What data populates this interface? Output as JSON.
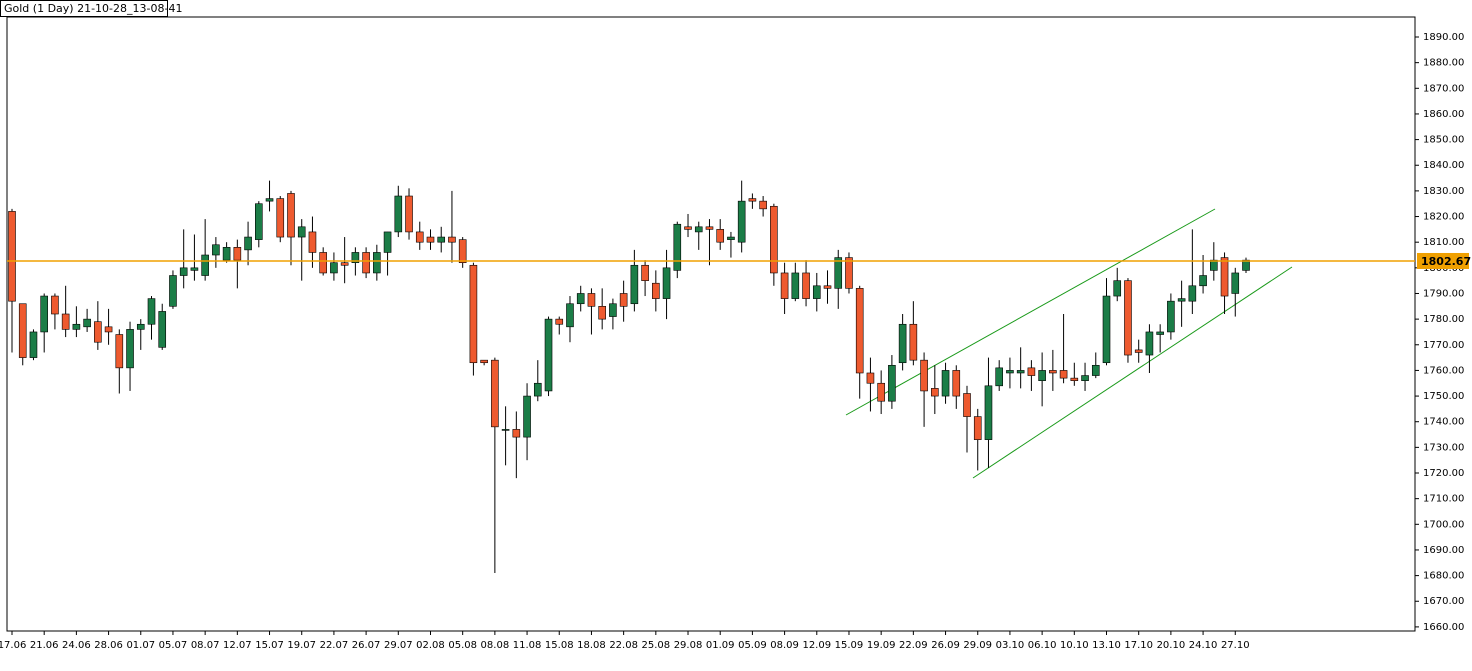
{
  "chart_data": {
    "type": "candlestick",
    "title": "Gold (1 Day) 21-10-28_13-08-41",
    "categories": [
      "17.06",
      null,
      null,
      "21.06",
      null,
      null,
      "24.06",
      null,
      null,
      "28.06",
      null,
      null,
      "01.07",
      null,
      null,
      "05.07",
      null,
      null,
      "08.07",
      null,
      null,
      "12.07",
      null,
      null,
      "15.07",
      null,
      null,
      "19.07",
      null,
      null,
      "22.07",
      null,
      null,
      "26.07",
      null,
      null,
      "29.07",
      null,
      null,
      "02.08",
      null,
      null,
      "05.08",
      null,
      null,
      "08.08",
      null,
      null,
      "11.08",
      null,
      null,
      "15.08",
      null,
      null,
      "18.08",
      null,
      null,
      "22.08",
      null,
      null,
      "25.08",
      null,
      null,
      "29.08",
      null,
      null,
      "01.09",
      null,
      null,
      "05.09",
      null,
      null,
      "08.09",
      null,
      null,
      "12.09",
      null,
      null,
      "15.09",
      null,
      null,
      "19.09",
      null,
      null,
      "22.09",
      null,
      null,
      "26.09",
      null,
      null,
      "29.09",
      null,
      null,
      "03.10",
      null,
      null,
      "06.10",
      null,
      null,
      "10.10",
      null,
      null,
      "13.10",
      null,
      null,
      "17.10",
      null,
      null,
      "20.10",
      null,
      null,
      "24.10",
      null,
      null,
      "27.10",
      null
    ],
    "series": [
      {
        "open": [
          1822,
          1786,
          1765,
          1775,
          1789,
          1782,
          1776,
          1777,
          1779,
          1777,
          1774,
          1761,
          1776,
          1778,
          1769,
          1785,
          1797,
          1799,
          1797,
          1805,
          1803,
          1808,
          1807,
          1811,
          1826,
          1827,
          1829,
          1812,
          1814,
          1806,
          1798,
          1802,
          1802,
          1806,
          1798,
          1806,
          1814,
          1828,
          1814,
          1812,
          1810,
          1812,
          1811,
          1801,
          1764,
          1764,
          1737,
          1737,
          1734,
          1750,
          1752,
          1780,
          1777,
          1786,
          1790,
          1785,
          1781,
          1790,
          1786,
          1801,
          1794,
          1788,
          1799,
          1816,
          1814,
          1816,
          1815,
          1811,
          1810,
          1827,
          1826,
          1824,
          1798,
          1788,
          1798,
          1788,
          1793,
          1792,
          1804,
          1792,
          1759,
          1755,
          1748,
          1763,
          1778,
          1764,
          1753,
          1750,
          1760,
          1751,
          1742,
          1733,
          1754,
          1759,
          1759,
          1761,
          1756,
          1760,
          1760,
          1757,
          1756,
          1758,
          1763,
          1789,
          1795,
          1768,
          1766,
          1774,
          1775,
          1787,
          1787,
          1793,
          1799,
          1804,
          1790,
          1799
        ],
        "high": [
          1823,
          1786,
          1776,
          1790,
          1790,
          1793,
          1785,
          1784,
          1787,
          1784,
          1776,
          1779,
          1780,
          1789,
          1786,
          1799,
          1815,
          1813,
          1819,
          1812,
          1810,
          1811,
          1818,
          1826,
          1834,
          1828,
          1830,
          1819,
          1820,
          1808,
          1806,
          1812,
          1808,
          1808,
          1809,
          1814,
          1832,
          1831,
          1818,
          1815,
          1816,
          1830,
          1812,
          1802,
          1764,
          1765,
          1746,
          1744,
          1755,
          1764,
          1781,
          1781,
          1789,
          1793,
          1792,
          1792,
          1788,
          1795,
          1807,
          1803,
          1799,
          1807,
          1818,
          1821,
          1818,
          1819,
          1819,
          1814,
          1834,
          1829,
          1828,
          1825,
          1802,
          1802,
          1803,
          1798,
          1799,
          1807,
          1806,
          1793,
          1765,
          1760,
          1766,
          1782,
          1787,
          1767,
          1762,
          1763,
          1762,
          1754,
          1745,
          1765,
          1764,
          1765,
          1769,
          1764,
          1767,
          1768,
          1782,
          1763,
          1763,
          1767,
          1796,
          1800,
          1796,
          1772,
          1778,
          1778,
          1790,
          1795,
          1815,
          1805,
          1810,
          1806,
          1800,
          1804
        ],
        "low": [
          1767,
          1762,
          1764,
          1767,
          1776,
          1773,
          1773,
          1775,
          1768,
          1770,
          1751,
          1752,
          1768,
          1772,
          1768,
          1784,
          1792,
          1795,
          1795,
          1800,
          1802,
          1792,
          1801,
          1808,
          1822,
          1810,
          1801,
          1795,
          1800,
          1797,
          1795,
          1794,
          1797,
          1796,
          1795,
          1797,
          1812,
          1811,
          1807,
          1807,
          1806,
          1802,
          1800,
          1758,
          1762,
          1681,
          1723,
          1718,
          1725,
          1748,
          1750,
          1774,
          1771,
          1783,
          1774,
          1776,
          1776,
          1779,
          1783,
          1789,
          1783,
          1780,
          1796,
          1812,
          1807,
          1801,
          1807,
          1804,
          1806,
          1823,
          1820,
          1793,
          1782,
          1787,
          1785,
          1783,
          1786,
          1784,
          1790,
          1749,
          1744,
          1743,
          1745,
          1760,
          1762,
          1738,
          1743,
          1747,
          1745,
          1728,
          1721,
          1722,
          1752,
          1753,
          1753,
          1752,
          1746,
          1752,
          1755,
          1754,
          1752,
          1757,
          1762,
          1787,
          1763,
          1763,
          1759,
          1767,
          1772,
          1777,
          1782,
          1790,
          1795,
          1782,
          1781,
          1798
        ],
        "close": [
          1787,
          1765,
          1775,
          1789,
          1782,
          1776,
          1778,
          1780,
          1771,
          1775,
          1761,
          1776,
          1778,
          1788,
          1783,
          1797,
          1800,
          1800,
          1805,
          1809,
          1808,
          1803,
          1812,
          1825,
          1827,
          1812,
          1812,
          1816,
          1806,
          1798,
          1802,
          1801,
          1806,
          1798,
          1806,
          1814,
          1828,
          1814,
          1810,
          1810,
          1812,
          1810,
          1802,
          1763,
          1763,
          1738,
          1737,
          1734,
          1750,
          1755,
          1780,
          1778,
          1786,
          1790,
          1785,
          1780,
          1786,
          1785,
          1801,
          1795,
          1788,
          1800,
          1817,
          1815,
          1816,
          1815,
          1810,
          1812,
          1826,
          1826,
          1823,
          1798,
          1788,
          1798,
          1788,
          1793,
          1792,
          1804,
          1792,
          1759,
          1755,
          1748,
          1762,
          1778,
          1764,
          1752,
          1750,
          1760,
          1750,
          1742,
          1733,
          1754,
          1761,
          1760,
          1760,
          1758,
          1760,
          1759,
          1757,
          1756,
          1758,
          1762,
          1789,
          1795,
          1766,
          1767,
          1775,
          1775,
          1787,
          1788,
          1793,
          1797,
          1803,
          1789,
          1798,
          1803
        ]
      }
    ],
    "up_color": "#1b7d47",
    "down_color": "#ee5a2f",
    "current_price": 1802.67,
    "current_price_color": "#f0a000",
    "ylim": [
      1658.4,
      1897.8
    ],
    "yticks": [
      {
        "value": 1660,
        "label": "1660.00"
      },
      {
        "value": 1670,
        "label": "1670.00"
      },
      {
        "value": 1680,
        "label": "1680.00"
      },
      {
        "value": 1690,
        "label": "1690.00"
      },
      {
        "value": 1700,
        "label": "1700.00"
      },
      {
        "value": 1710,
        "label": "1710.00"
      },
      {
        "value": 1720,
        "label": "1720.00"
      },
      {
        "value": 1730,
        "label": "1730.00"
      },
      {
        "value": 1740,
        "label": "1740.00"
      },
      {
        "value": 1750,
        "label": "1750.00"
      },
      {
        "value": 1760,
        "label": "1760.00"
      },
      {
        "value": 1770,
        "label": "1770.00"
      },
      {
        "value": 1780,
        "label": "1780.00"
      },
      {
        "value": 1790,
        "label": "1790.00"
      },
      {
        "value": 1800,
        "label": "1800.00"
      },
      {
        "value": 1810,
        "label": "1810.00"
      },
      {
        "value": 1820,
        "label": "1820.00"
      },
      {
        "value": 1830,
        "label": "1830.00"
      },
      {
        "value": 1840,
        "label": "1840.00"
      },
      {
        "value": 1850,
        "label": "1850.00"
      },
      {
        "value": 1860,
        "label": "1860.00"
      },
      {
        "value": 1870,
        "label": "1870.00"
      },
      {
        "value": 1880,
        "label": "1880.00"
      },
      {
        "value": 1890,
        "label": "1890.00"
      }
    ]
  }
}
